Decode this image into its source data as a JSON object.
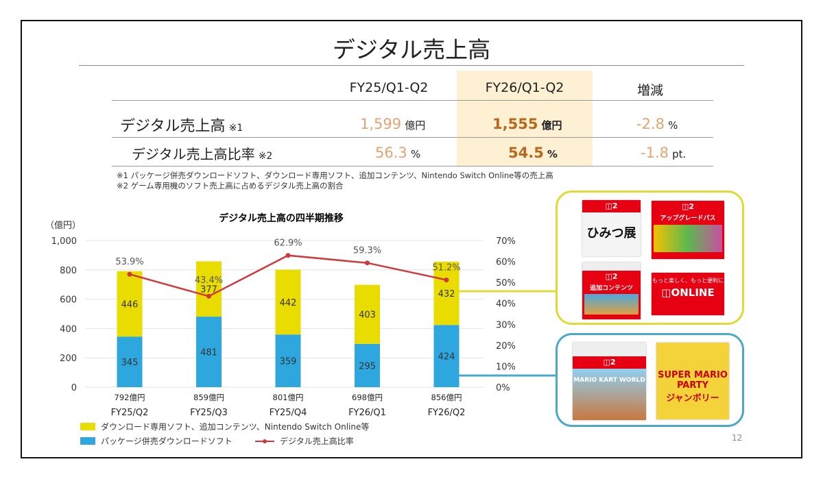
{
  "title": "デジタル売上高",
  "table": {
    "headers": [
      "FY25/Q1-Q2",
      "FY26/Q1-Q2",
      "増減"
    ],
    "rows": [
      {
        "label": "デジタル売上高",
        "note": "※1",
        "fy25": "1,599",
        "fy25_unit": "億円",
        "fy26": "1,555",
        "fy26_unit": "億円",
        "change": "-2.8",
        "change_unit": "%"
      },
      {
        "label": "デジタル売上高比率",
        "note": "※2",
        "fy25": "56.3",
        "fy25_unit": "%",
        "fy26": "54.5",
        "fy26_unit": "%",
        "change": "-1.8",
        "change_unit": "pt."
      }
    ],
    "notes": [
      "※1 パッケージ併売ダウンロードソフト、ダウンロード専用ソフト、追加コンテンツ、Nintendo Switch Online等の売上高",
      "※2 ゲーム専用機のソフト売上高に占めるデジタル売上高の割合"
    ]
  },
  "colors": {
    "yellow": "#e8dc00",
    "blue": "#2ea7df",
    "line": "#d0393c",
    "highlight": "#fdf0d3",
    "value_light": "#e2a472",
    "value_bold": "#b8681c"
  },
  "chart_data": {
    "type": "bar",
    "stacked": true,
    "title": "デジタル売上高の四半期推移",
    "ylabel": "（億円）",
    "ylim": [
      0,
      1000
    ],
    "yticks": [
      "1,000",
      "800",
      "600",
      "400",
      "200",
      "0"
    ],
    "y2lim": [
      0,
      70
    ],
    "y2ticks": [
      "70%",
      "60%",
      "50%",
      "40%",
      "30%",
      "20%",
      "10%",
      "0%"
    ],
    "grid": true,
    "legend_placement": "bottom-left",
    "categories": [
      "FY25/Q2",
      "FY25/Q3",
      "FY25/Q4",
      "FY26/Q1",
      "FY26/Q2"
    ],
    "totals": [
      "792億円",
      "859億円",
      "801億円",
      "698億円",
      "856億円"
    ],
    "series": [
      {
        "name": "パッケージ併売ダウンロードソフト",
        "type": "bar",
        "color": "#2ea7df",
        "values": [
          345,
          481,
          359,
          295,
          424
        ]
      },
      {
        "name": "ダウンロード専用ソフト、追加コンテンツ、Nintendo Switch Online等",
        "type": "bar",
        "color": "#e8dc00",
        "values": [
          446,
          377,
          442,
          403,
          432
        ]
      },
      {
        "name": "デジタル売上高比率",
        "type": "line",
        "axis": "right",
        "color": "#d0393c",
        "values": [
          53.9,
          43.4,
          62.9,
          59.3,
          51.2
        ],
        "labels": [
          "53.9%",
          "43.4%",
          "62.9%",
          "59.3%",
          "51.2%"
        ]
      }
    ]
  },
  "page_number": "12",
  "cards": {
    "yellow_group": [
      "ひみつ展",
      "アップグレードパス",
      "追加コンテンツ",
      "もっと楽しく、もっと便利に ONLINE"
    ],
    "blue_group": [
      "MARIO KART WORLD",
      "SUPER MARIO PARTY ジャンボリー"
    ]
  }
}
